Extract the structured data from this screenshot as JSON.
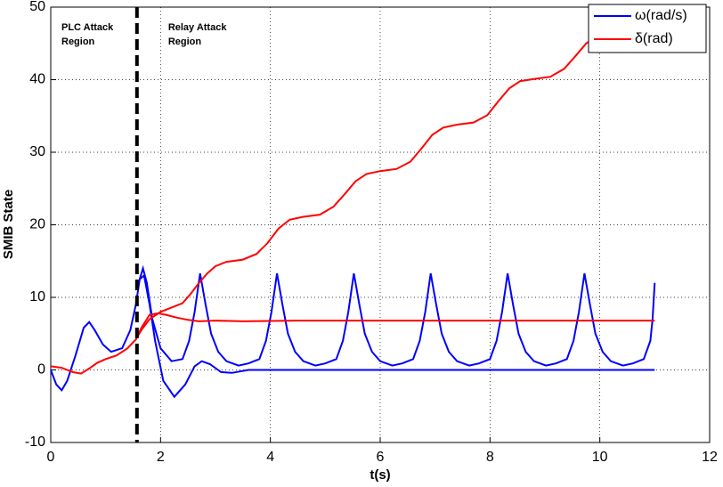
{
  "chart_data": {
    "type": "line",
    "xlabel": "t(s)",
    "ylabel": "SMIB State",
    "xlim": [
      0,
      12
    ],
    "xticks": [
      0,
      2,
      4,
      6,
      8,
      10,
      12
    ],
    "ylim": [
      -10,
      50
    ],
    "yticks": [
      -10,
      0,
      10,
      20,
      30,
      40,
      50
    ],
    "grid": true,
    "legend": "upper right",
    "attack_boundary_x": 1.57,
    "annotations": [
      [
        "PLC Attack",
        "Region"
      ],
      [
        "Relay Attack",
        "Region"
      ]
    ],
    "series": [
      {
        "name": "ω(rad/s)",
        "color": "#0000ff",
        "x": [
          0,
          0.1,
          0.2,
          0.3,
          0.45,
          0.6,
          0.7,
          0.8,
          0.95,
          1.1,
          1.3,
          1.45,
          1.55,
          1.62,
          1.68,
          1.75,
          1.85,
          2.0,
          2.2,
          2.4,
          2.52,
          2.62,
          2.72,
          2.82,
          2.92,
          3.05,
          3.2,
          3.42,
          3.6,
          3.8,
          3.92,
          4.02,
          4.12,
          4.22,
          4.32,
          4.45,
          4.6,
          4.82,
          5.0,
          5.2,
          5.32,
          5.42,
          5.52,
          5.62,
          5.72,
          5.85,
          6.0,
          6.22,
          6.4,
          6.6,
          6.72,
          6.82,
          6.92,
          7.02,
          7.12,
          7.25,
          7.4,
          7.62,
          7.8,
          8.0,
          8.12,
          8.22,
          8.32,
          8.42,
          8.52,
          8.65,
          8.8,
          9.02,
          9.2,
          9.4,
          9.52,
          9.62,
          9.72,
          9.82,
          9.92,
          10.05,
          10.2,
          10.42,
          10.6,
          10.8,
          10.92,
          10.96,
          11.0,
          null,
          1.55,
          1.62,
          1.7,
          1.8,
          1.9,
          2.05,
          2.25,
          2.45,
          2.62,
          2.75,
          2.9,
          3.1,
          3.3,
          3.6,
          4.2,
          11.0
        ],
        "values": [
          0,
          -2,
          -2.8,
          -1.5,
          2,
          5.8,
          6.6,
          5.5,
          3.5,
          2.5,
          3,
          5.5,
          9,
          12.5,
          14,
          12,
          7,
          3,
          1.2,
          1.5,
          4,
          8,
          13.3,
          9,
          5,
          2.5,
          1.2,
          0.6,
          0.9,
          1.5,
          4,
          8,
          13.3,
          9,
          5,
          2.5,
          1.2,
          0.6,
          0.9,
          1.5,
          4,
          8,
          13.3,
          9,
          5,
          2.5,
          1.2,
          0.6,
          0.9,
          1.5,
          4,
          8,
          13.3,
          9,
          5,
          2.5,
          1.2,
          0.6,
          0.9,
          1.5,
          4,
          8,
          13.3,
          9,
          5,
          2.5,
          1.2,
          0.6,
          0.9,
          1.5,
          4,
          8,
          13.3,
          9,
          5,
          2.5,
          1.2,
          0.6,
          0.9,
          1.5,
          4,
          7,
          12,
          null,
          9,
          12.5,
          13,
          9,
          4,
          -1.5,
          -3.7,
          -2,
          0.5,
          1.2,
          0.8,
          -0.3,
          -0.4,
          0,
          0,
          0
        ]
      },
      {
        "name": "δ(rad)",
        "color": "#ff0000",
        "x": [
          0,
          0.2,
          0.4,
          0.55,
          0.7,
          0.85,
          1.0,
          1.2,
          1.4,
          1.55,
          1.65,
          1.8,
          2.0,
          2.2,
          2.4,
          2.55,
          2.7,
          2.85,
          3.0,
          3.2,
          3.5,
          3.75,
          3.95,
          4.15,
          4.35,
          4.6,
          4.9,
          5.15,
          5.35,
          5.55,
          5.75,
          6.0,
          6.3,
          6.55,
          6.75,
          6.95,
          7.15,
          7.4,
          7.7,
          7.95,
          8.15,
          8.35,
          8.55,
          8.8,
          9.1,
          9.35,
          9.55,
          9.75,
          9.95,
          10.3,
          null,
          1.55,
          1.65,
          1.8,
          1.95,
          2.1,
          2.3,
          2.5,
          2.7,
          3.0,
          3.5,
          4.5,
          11.0
        ],
        "values": [
          0.5,
          0.3,
          -0.3,
          -0.5,
          0.2,
          1,
          1.5,
          2,
          3,
          4.2,
          5.5,
          7,
          8,
          8.6,
          9.2,
          10.5,
          12,
          13.3,
          14.3,
          14.9,
          15.2,
          16,
          17.5,
          19.5,
          20.7,
          21.1,
          21.4,
          22.5,
          24.2,
          26,
          27,
          27.4,
          27.7,
          28.7,
          30.5,
          32.4,
          33.4,
          33.8,
          34.1,
          35.1,
          37,
          38.8,
          39.8,
          40.1,
          40.4,
          41.5,
          43.2,
          45,
          46,
          46.6,
          null,
          4.2,
          5.8,
          7.6,
          7.8,
          7.6,
          7.2,
          6.9,
          6.7,
          6.8,
          6.7,
          6.8,
          6.8
        ]
      }
    ]
  }
}
